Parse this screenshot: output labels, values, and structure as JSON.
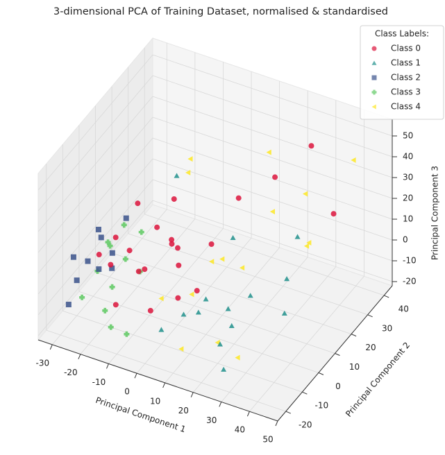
{
  "chart_data": {
    "type": "scatter3d",
    "title": "3-dimensional PCA of Training Dataset, normalised & standardised",
    "xlabel": "Principal Component 1",
    "ylabel": "Principal Component 2",
    "zlabel": "Principal Component 3",
    "xlim": [
      -35,
      50
    ],
    "ylim": [
      -25,
      45
    ],
    "zlim": [
      -22,
      58
    ],
    "xticks": [
      -30,
      -20,
      -10,
      0,
      10,
      20,
      30,
      40,
      50
    ],
    "yticks": [
      -20,
      -10,
      0,
      10,
      20,
      30,
      40
    ],
    "zticks": [
      -20,
      -10,
      0,
      10,
      20,
      30,
      40,
      50
    ],
    "grid": true,
    "legend_title": "Class Labels:",
    "legend_position": "upper right",
    "series": [
      {
        "name": "Class 0",
        "color": "#dc143c",
        "marker": "o",
        "x": [
          -25,
          -22,
          -20,
          -18,
          -15,
          -12,
          -10,
          -8,
          -5,
          -2,
          0,
          3,
          5,
          8,
          -20,
          -15,
          -10,
          -5,
          10,
          20,
          30,
          35
        ],
        "y": [
          -5,
          0,
          5,
          -10,
          2,
          8,
          -3,
          10,
          -8,
          4,
          0,
          -5,
          12,
          -2,
          10,
          -12,
          15,
          5,
          20,
          25,
          30,
          35
        ],
        "z": [
          5,
          10,
          0,
          8,
          -5,
          12,
          3,
          6,
          -10,
          2,
          15,
          -3,
          8,
          0,
          18,
          -8,
          20,
          10,
          25,
          35,
          50,
          15
        ]
      },
      {
        "name": "Class 1",
        "color": "#21918c",
        "marker": "^",
        "x": [
          0,
          5,
          10,
          15,
          20,
          25,
          30,
          8,
          12,
          18,
          22,
          -5,
          35,
          28
        ],
        "y": [
          -10,
          -5,
          0,
          5,
          10,
          -15,
          15,
          20,
          -8,
          2,
          -12,
          8,
          5,
          25
        ],
        "z": [
          -15,
          -10,
          -5,
          -12,
          -8,
          -18,
          0,
          5,
          -3,
          -16,
          -10,
          40,
          -5,
          10
        ]
      },
      {
        "name": "Class 2",
        "color": "#3b528b",
        "marker": "s",
        "x": [
          -30,
          -30,
          -29,
          -28,
          -31,
          -29,
          -27,
          -30,
          -28,
          -26
        ],
        "y": [
          -15,
          -10,
          -5,
          0,
          5,
          10,
          15,
          -12,
          8,
          -2
        ],
        "z": [
          -12,
          -5,
          0,
          -8,
          5,
          -10,
          3,
          8,
          -15,
          10
        ]
      },
      {
        "name": "Class 3",
        "color": "#5ec962",
        "marker": "P",
        "x": [
          -27,
          -25,
          -24,
          -22,
          -26,
          -20,
          -23,
          -18,
          -25,
          -21,
          -15,
          -10
        ],
        "y": [
          -12,
          -6,
          0,
          6,
          12,
          -10,
          -3,
          8,
          3,
          14,
          -15,
          -14
        ],
        "z": [
          -10,
          -2,
          5,
          -6,
          3,
          -15,
          10,
          -12,
          -18,
          0,
          -16,
          -18
        ]
      },
      {
        "name": "Class 4",
        "color": "#fde725",
        "marker": "<",
        "x": [
          0,
          5,
          10,
          15,
          20,
          25,
          30,
          35,
          40,
          -5,
          -10,
          15,
          25,
          45,
          20,
          10
        ],
        "y": [
          -10,
          0,
          10,
          -5,
          5,
          15,
          -15,
          20,
          10,
          15,
          25,
          30,
          35,
          30,
          -10,
          -15
        ],
        "z": [
          0,
          -5,
          5,
          20,
          10,
          30,
          -10,
          15,
          25,
          35,
          30,
          40,
          20,
          50,
          -12,
          -15
        ]
      }
    ]
  }
}
